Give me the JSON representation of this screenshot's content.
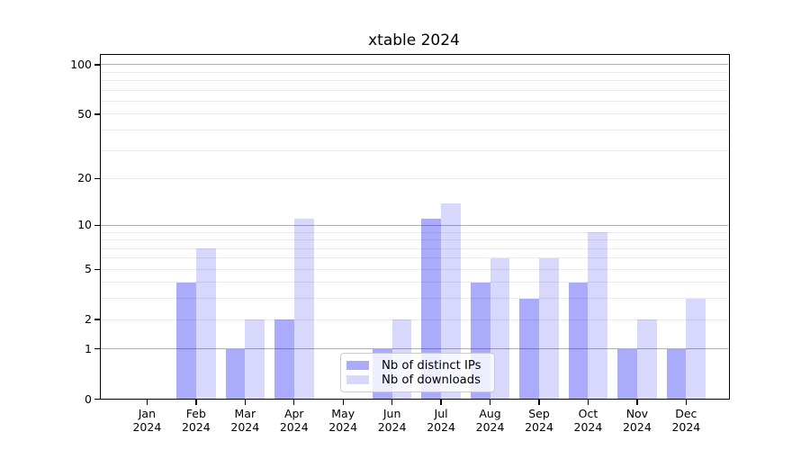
{
  "chart_data": {
    "type": "bar",
    "title": "xtable 2024",
    "categories": [
      "Jan",
      "Feb",
      "Mar",
      "Apr",
      "May",
      "Jun",
      "Jul",
      "Aug",
      "Sep",
      "Oct",
      "Nov",
      "Dec"
    ],
    "category_year": "2024",
    "series": [
      {
        "name": "Nb of distinct IPs",
        "color": "rgba(8,8,244,0.34)",
        "values": [
          0,
          4,
          1,
          2,
          0,
          1,
          11,
          4,
          3,
          4,
          1,
          1
        ]
      },
      {
        "name": "Nb of downloads",
        "color": "rgba(8,8,244,0.155)",
        "values": [
          0,
          7,
          2,
          11,
          0,
          2,
          14,
          6,
          6,
          9,
          2,
          3
        ]
      }
    ],
    "yscale": "log1p",
    "ylim": [
      0,
      113
    ],
    "yticks_labeled": [
      0,
      1,
      2,
      5,
      10,
      20,
      50,
      100
    ],
    "gridlines_major": [
      1,
      10,
      100
    ],
    "gridlines_minor": [
      2,
      3,
      4,
      5,
      6,
      7,
      8,
      9,
      20,
      30,
      40,
      50,
      60,
      70,
      80,
      90
    ],
    "grid": true,
    "legend_position": "lower center",
    "colors": {
      "background": "#ffffff",
      "axis": "#000000",
      "grid_major": "#b0b0b0",
      "grid_minor": "#e9e9e9",
      "bar_distinct_ips_rendered": "#abaaf9",
      "bar_downloads_rendered": "#d9d9fb"
    }
  }
}
